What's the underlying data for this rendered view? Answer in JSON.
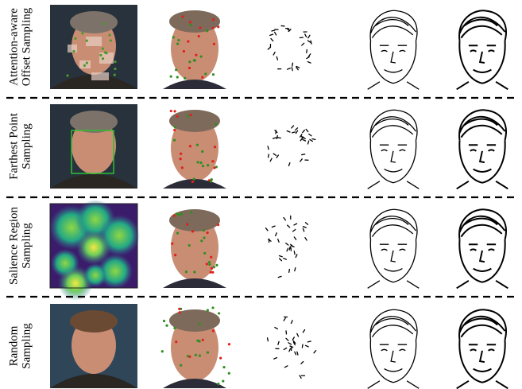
{
  "rows": [
    {
      "label_lines": [
        "Attention-aware",
        "Offset Sampling"
      ]
    },
    {
      "label_lines": [
        "Farthest Point",
        "Sampling"
      ]
    },
    {
      "label_lines": [
        "Salience Region",
        "Sampling"
      ]
    },
    {
      "label_lines": [
        "Random",
        "Sampling"
      ]
    }
  ]
}
